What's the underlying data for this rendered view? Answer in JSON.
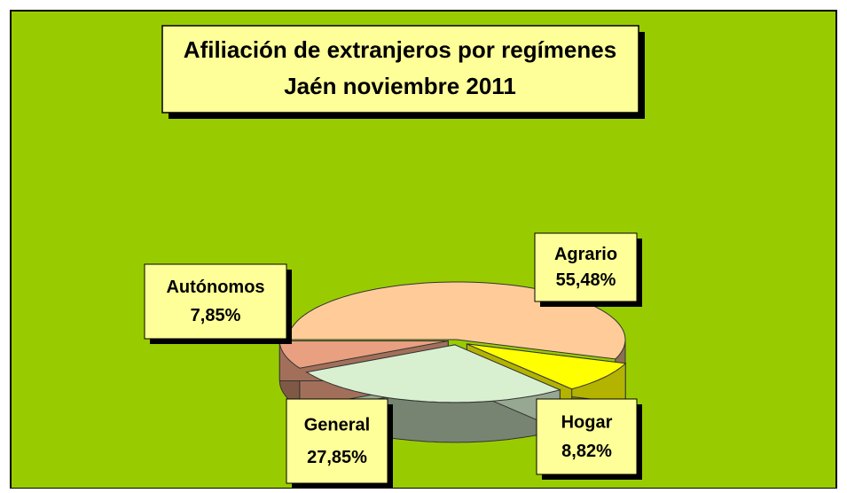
{
  "chart_data": {
    "type": "pie",
    "title": "Afiliación de extranjeros por regímenes",
    "subtitle": "Jaén noviembre 2011",
    "categories": [
      "Agrario",
      "Hogar",
      "General",
      "Autónomos"
    ],
    "values": [
      55.48,
      8.82,
      27.85,
      7.85
    ],
    "value_labels": [
      "55,48%",
      "8,82%",
      "27,85%",
      "7,85%"
    ],
    "colors": [
      "#ffcc99",
      "#ffff00",
      "#d8f0d0",
      "#e8a080"
    ]
  }
}
